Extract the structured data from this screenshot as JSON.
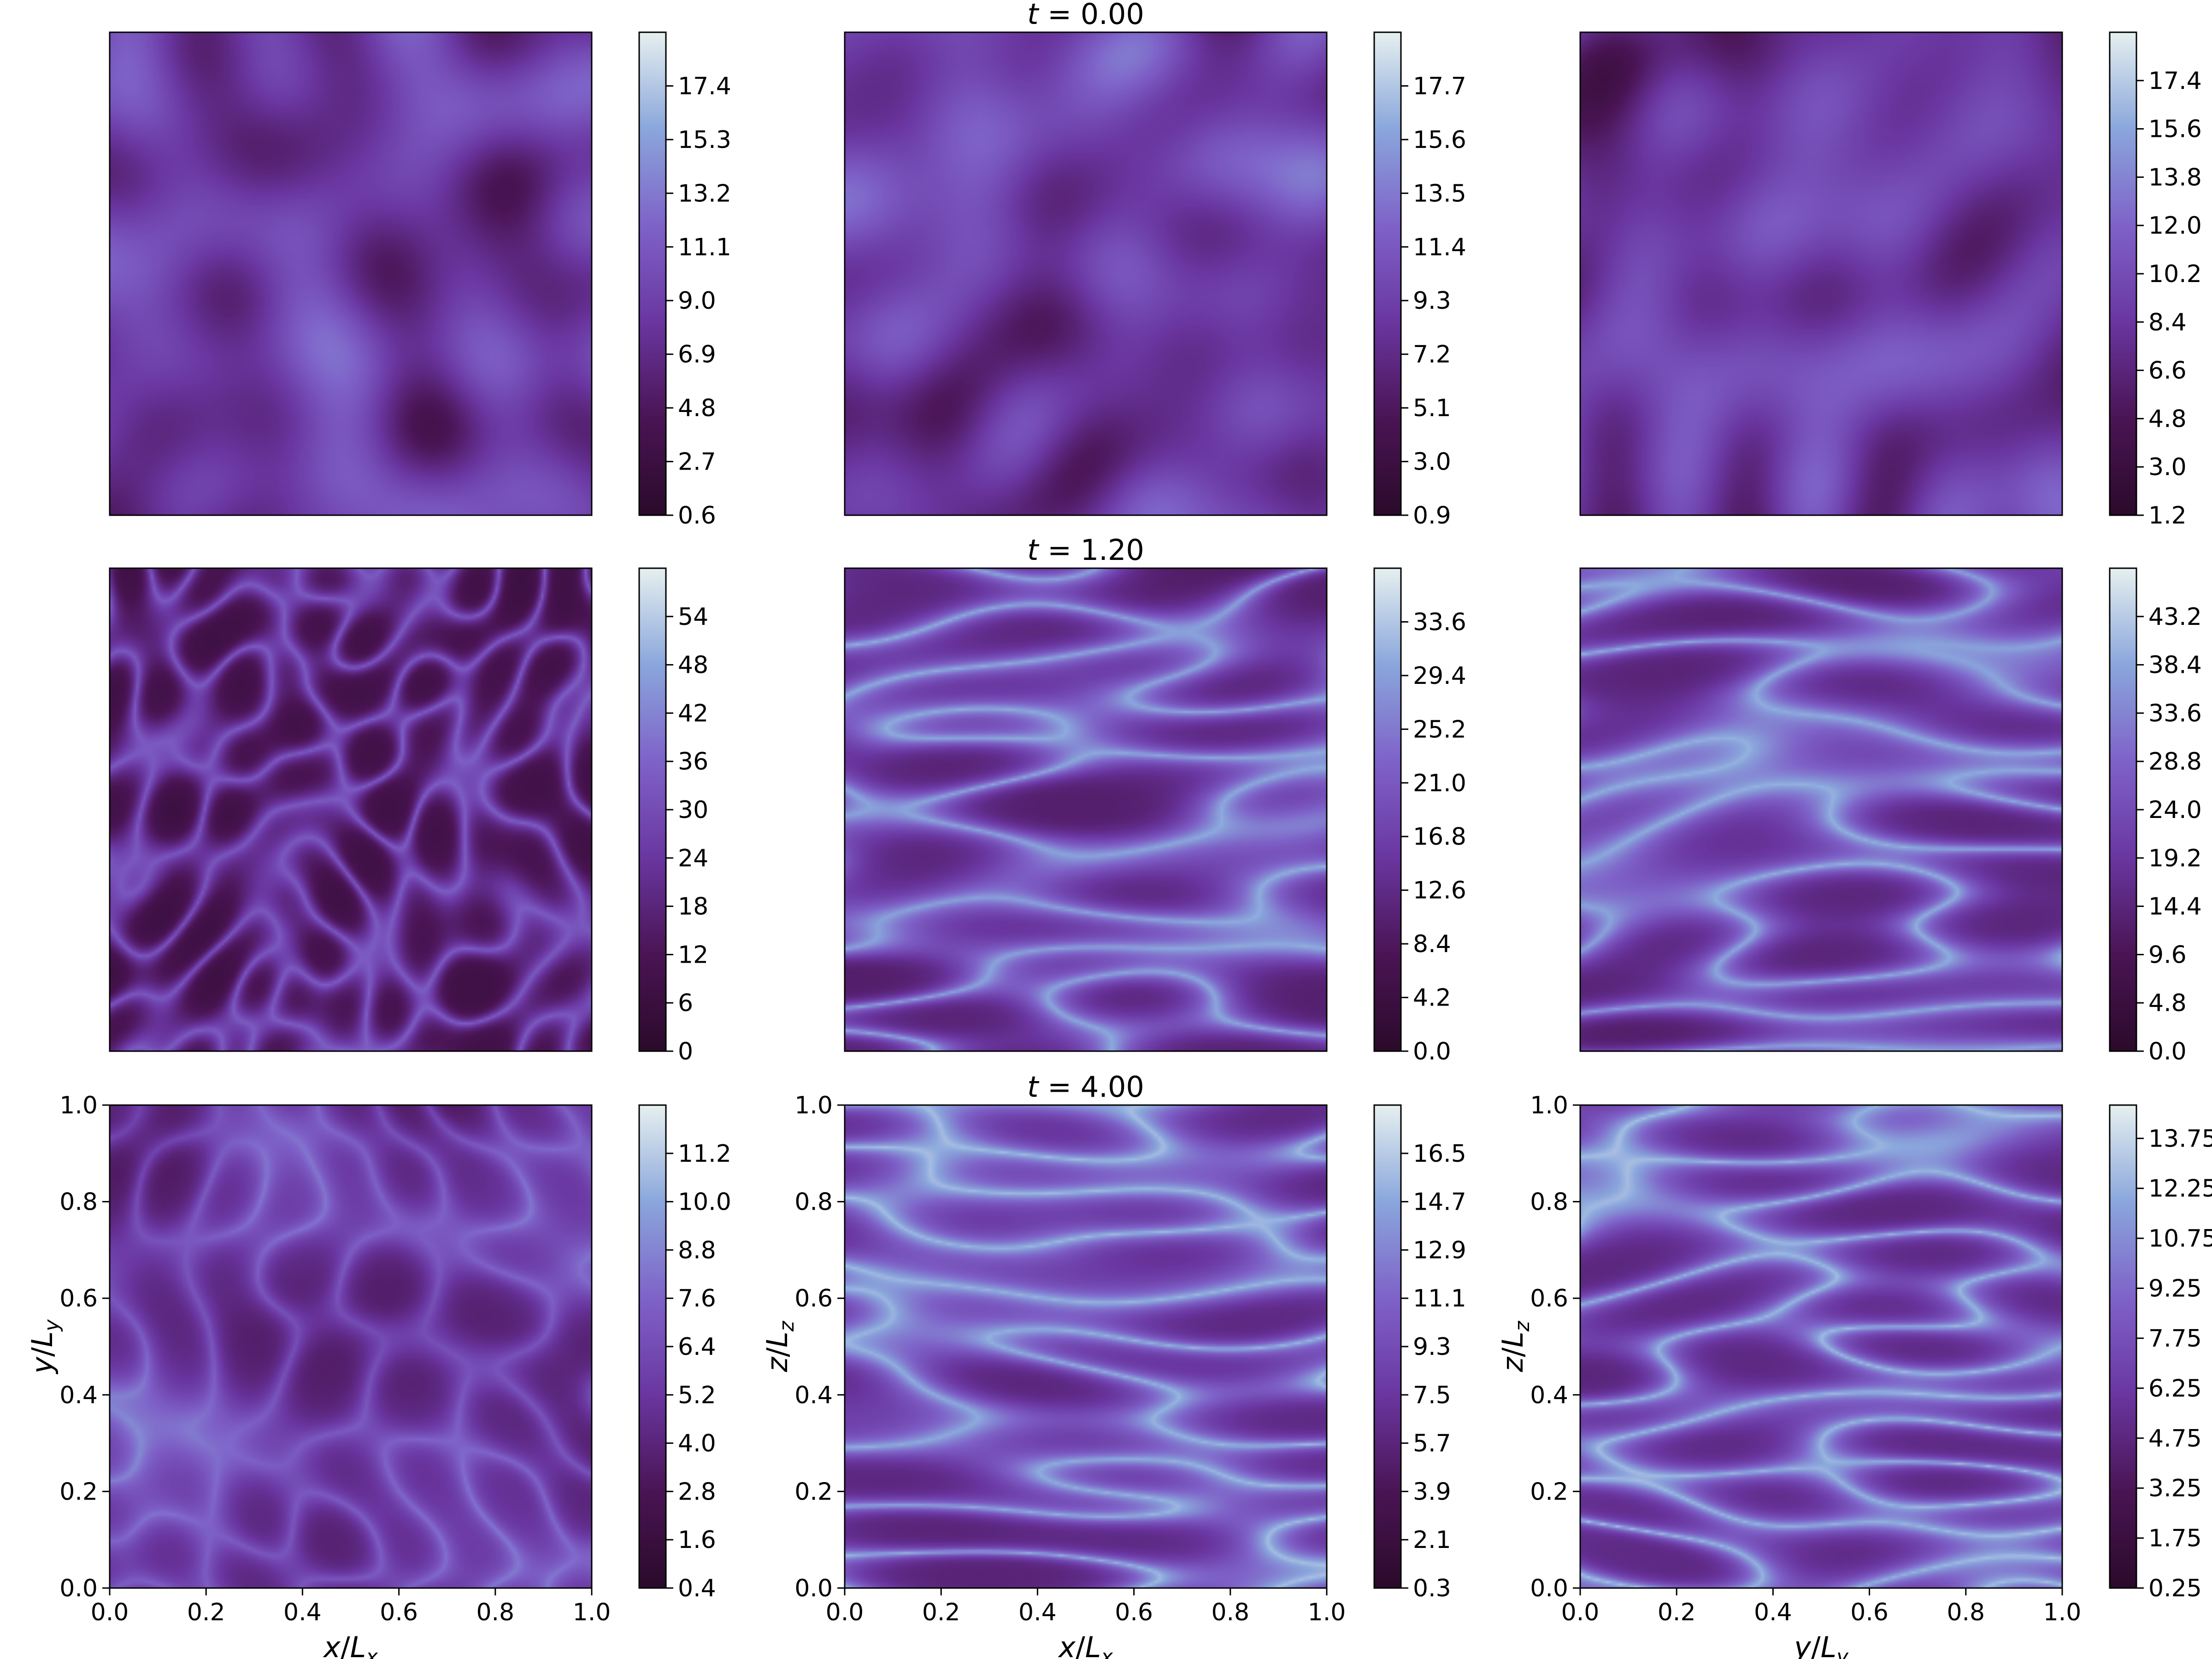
{
  "chart_data": {
    "type": "heatmap",
    "layout": "3x3 grid of 2D field slices with individual colorbars",
    "colormap": {
      "name": "twilight (dark half)",
      "stops": [
        "#2a0a2a",
        "#4a1454",
        "#6a36a0",
        "#7e62c8",
        "#8aa6dc",
        "#e6f0ef"
      ]
    },
    "rows": [
      {
        "title": "t = 0.00",
        "panels": [
          {
            "pattern": "blobs",
            "view": "x-y",
            "clim": [
              0.6,
              19.5
            ],
            "ticks": [
              "0.6",
              "2.7",
              "4.8",
              "6.9",
              "9.0",
              "11.1",
              "13.2",
              "15.3",
              "17.4"
            ]
          },
          {
            "pattern": "blobs",
            "view": "x-z",
            "clim": [
              0.9,
              19.8
            ],
            "ticks": [
              "0.9",
              "3.0",
              "5.1",
              "7.2",
              "9.3",
              "11.4",
              "13.5",
              "15.6",
              "17.7"
            ]
          },
          {
            "pattern": "blobs",
            "view": "y-z",
            "clim": [
              1.2,
              19.2
            ],
            "ticks": [
              "1.2",
              "3.0",
              "4.8",
              "6.6",
              "8.4",
              "10.2",
              "12.0",
              "13.8",
              "15.6",
              "17.4"
            ]
          }
        ]
      },
      {
        "title": "t = 1.20",
        "panels": [
          {
            "pattern": "filaments-isotropic",
            "view": "x-y",
            "clim": [
              0,
              60
            ],
            "ticks": [
              "0",
              "6",
              "12",
              "18",
              "24",
              "30",
              "36",
              "42",
              "48",
              "54"
            ]
          },
          {
            "pattern": "streaks",
            "view": "x-z",
            "clim": [
              0.0,
              37.8
            ],
            "ticks": [
              "0.0",
              "4.2",
              "8.4",
              "12.6",
              "16.8",
              "21.0",
              "25.2",
              "29.4",
              "33.6"
            ]
          },
          {
            "pattern": "streaks",
            "view": "y-z",
            "clim": [
              0.0,
              48.0
            ],
            "ticks": [
              "0.0",
              "4.8",
              "9.6",
              "14.4",
              "19.2",
              "24.0",
              "28.8",
              "33.6",
              "38.4",
              "43.2"
            ]
          }
        ]
      },
      {
        "title": "t = 4.00",
        "panels": [
          {
            "pattern": "swirls",
            "view": "x-y",
            "clim": [
              0.4,
              12.4
            ],
            "ticks": [
              "0.4",
              "1.6",
              "2.8",
              "4.0",
              "5.2",
              "6.4",
              "7.6",
              "8.8",
              "10.0",
              "11.2"
            ],
            "xlabel": "x/Lx",
            "ylabel": "y/Ly"
          },
          {
            "pattern": "streaks-long",
            "view": "x-z",
            "clim": [
              0.3,
              18.3
            ],
            "ticks": [
              "0.3",
              "2.1",
              "3.9",
              "5.7",
              "7.5",
              "9.3",
              "11.1",
              "12.9",
              "14.7",
              "16.5"
            ],
            "xlabel": "x/Lx",
            "ylabel": "z/Lz"
          },
          {
            "pattern": "streaks-long",
            "view": "y-z",
            "clim": [
              0.25,
              14.75
            ],
            "ticks": [
              "0.25",
              "1.75",
              "3.25",
              "4.75",
              "6.25",
              "7.75",
              "9.25",
              "10.75",
              "12.25",
              "13.75"
            ],
            "xlabel": "y/Ly",
            "ylabel": "z/Lz"
          }
        ]
      }
    ],
    "axis_ticks": [
      "0.0",
      "0.2",
      "0.4",
      "0.6",
      "0.8",
      "1.0"
    ],
    "axis_range": [
      0,
      1
    ]
  }
}
